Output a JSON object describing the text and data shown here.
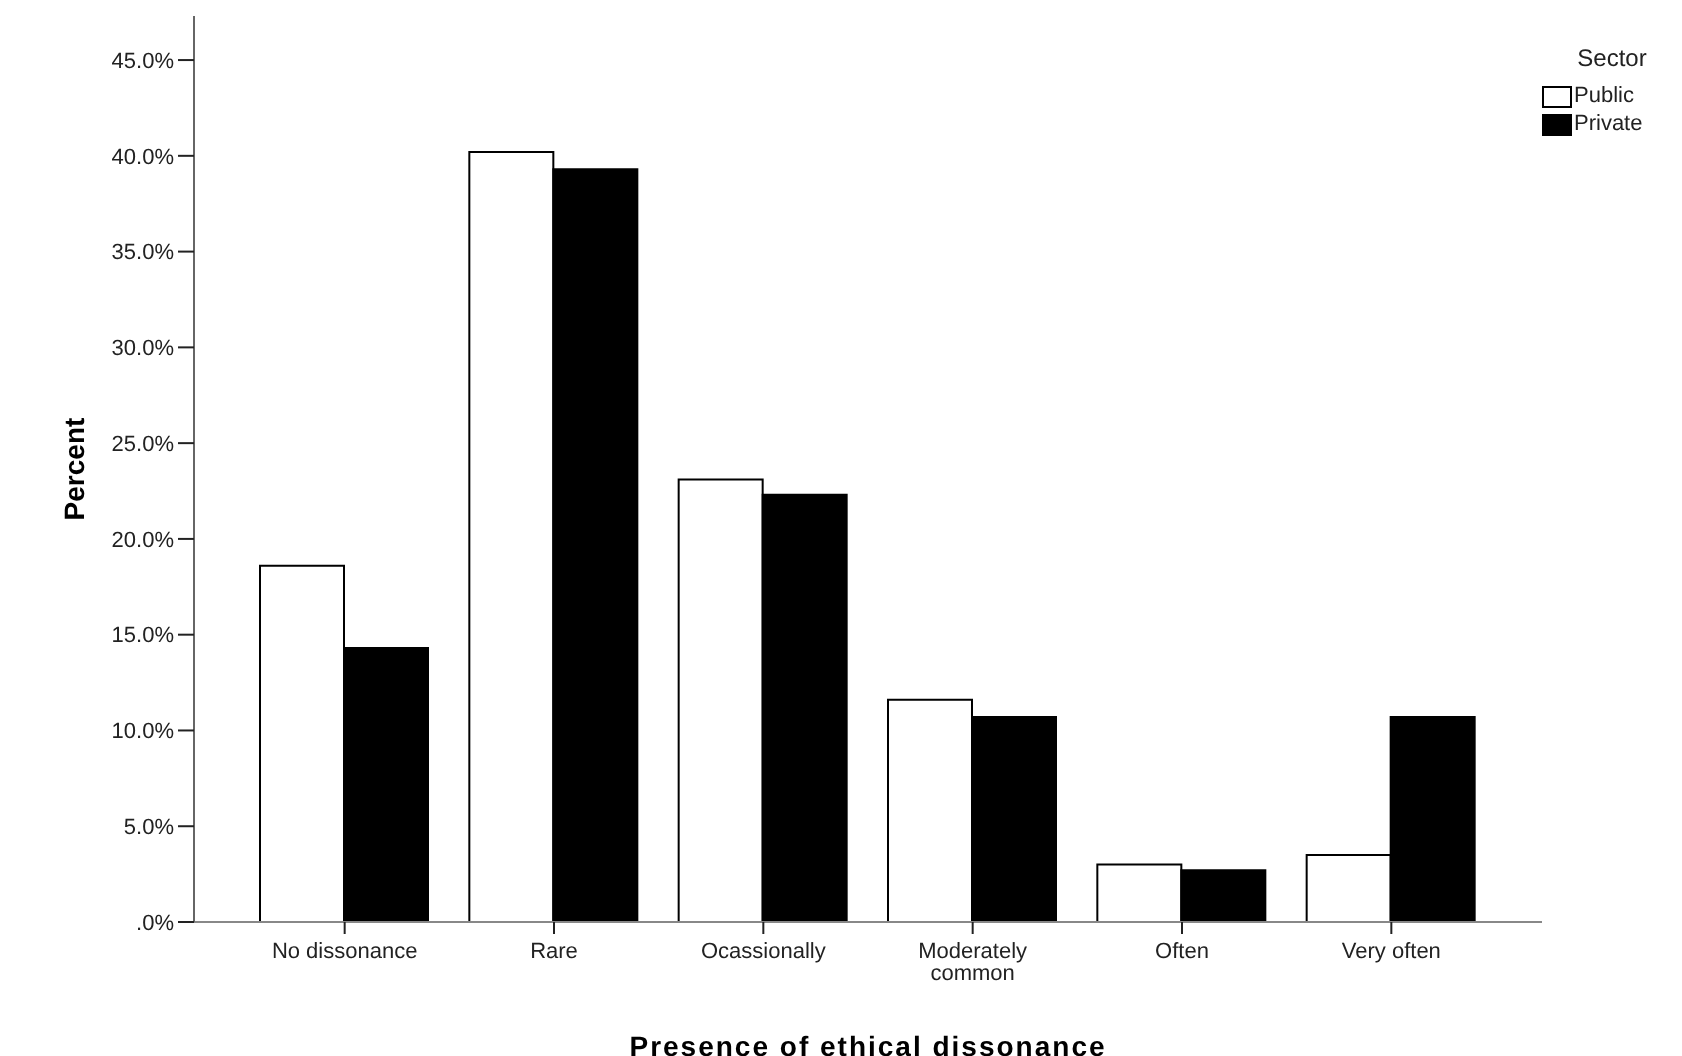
{
  "chart_data": {
    "type": "bar",
    "xlabel": "Presence of ethical dissonance",
    "ylabel": "Percent",
    "legend_title": "Sector",
    "legend": "top right",
    "grid": false,
    "categories": [
      "No dissonance",
      "Rare",
      "Ocassionally",
      "Moderately common",
      "Often",
      "Very often"
    ],
    "series": [
      {
        "name": "Public",
        "color": "#ffffff",
        "values": [
          18.6,
          40.2,
          23.1,
          11.6,
          3.0,
          3.5
        ]
      },
      {
        "name": "Private",
        "color": "#000000",
        "values": [
          14.3,
          39.3,
          22.3,
          10.7,
          2.7,
          10.7
        ]
      }
    ],
    "ylim": [
      0,
      47.3
    ],
    "yticks": [
      {
        "value": 0,
        "label": ".0%"
      },
      {
        "value": 5,
        "label": "5.0%"
      },
      {
        "value": 10,
        "label": "10.0%"
      },
      {
        "value": 15,
        "label": "15.0%"
      },
      {
        "value": 20,
        "label": "20.0%"
      },
      {
        "value": 25,
        "label": "25.0%"
      },
      {
        "value": 30,
        "label": "30.0%"
      },
      {
        "value": 35,
        "label": "35.0%"
      },
      {
        "value": 40,
        "label": "40.0%"
      },
      {
        "value": 45,
        "label": "45.0%"
      }
    ]
  }
}
